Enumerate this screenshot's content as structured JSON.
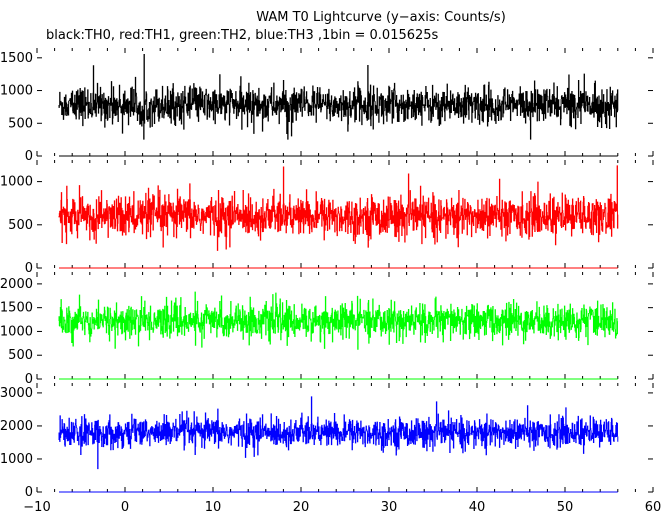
{
  "chart_data": {
    "type": "line",
    "title": "WAM T0 Lightcurve (y−axis: Counts/s)",
    "subtitle": "black:TH0, red:TH1, green:TH2, blue:TH3 ,1bin = 0.015625s",
    "xlabel": "",
    "ylabel": "",
    "xlim": [
      -10,
      60
    ],
    "x_data_range": [
      -7.5,
      56
    ],
    "x_ticks": [
      -10,
      0,
      10,
      20,
      30,
      40,
      50,
      60
    ],
    "x_tick_labels": [
      "−10",
      "0",
      "10",
      "20",
      "30",
      "40",
      "50",
      "60"
    ],
    "grid": false,
    "panels": [
      {
        "series_name": "TH0",
        "color": "#000000",
        "ylim": [
          0,
          1650
        ],
        "y_ticks": [
          0,
          500,
          1000,
          1500
        ],
        "y_tick_labels": [
          "0",
          "500",
          "1000",
          "1500"
        ],
        "mean": 780,
        "spread": 260,
        "min": 250,
        "max": 1600
      },
      {
        "series_name": "TH1",
        "color": "#ff0000",
        "ylim": [
          0,
          1250
        ],
        "y_ticks": [
          0,
          500,
          1000
        ],
        "y_tick_labels": [
          "0",
          "500",
          "1000"
        ],
        "mean": 600,
        "spread": 220,
        "min": 60,
        "max": 1220
      },
      {
        "series_name": "TH2",
        "color": "#00ff00",
        "ylim": [
          0,
          2250
        ],
        "y_ticks": [
          0,
          500,
          1000,
          1500,
          2000
        ],
        "y_tick_labels": [
          "0",
          "500",
          "1000",
          "1500",
          "2000"
        ],
        "mean": 1220,
        "spread": 340,
        "min": 250,
        "max": 2150
      },
      {
        "series_name": "TH3",
        "color": "#0000ff",
        "ylim": [
          0,
          3300
        ],
        "y_ticks": [
          0,
          1000,
          2000,
          3000
        ],
        "y_tick_labels": [
          "0",
          "1000",
          "2000",
          "3000"
        ],
        "mean": 1800,
        "spread": 420,
        "min": 650,
        "max": 3150
      }
    ]
  }
}
